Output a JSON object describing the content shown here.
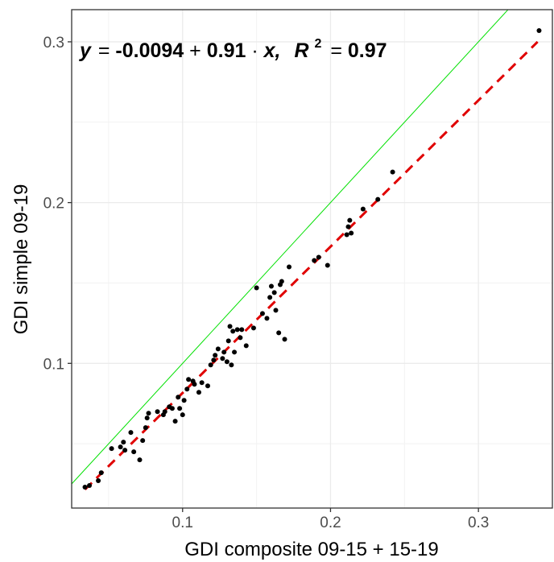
{
  "chart_data": {
    "type": "scatter",
    "xlabel": "GDI composite 09-15 + 15-19",
    "ylabel": "GDI simple 09-19",
    "xlim": [
      0.025,
      0.35
    ],
    "ylim": [
      0.01,
      0.32
    ],
    "x_ticks": [
      0.1,
      0.2,
      0.3
    ],
    "x_tick_labels": [
      "0.1",
      "0.2",
      "0.3"
    ],
    "y_ticks": [
      0.1,
      0.2,
      0.3
    ],
    "y_tick_labels": [
      "0.1",
      "0.2",
      "0.3"
    ],
    "grid": true,
    "annotation": {
      "y_var": "y",
      "equals": "=",
      "intercept": "-0.0094",
      "plus": "+",
      "slope": "0.91",
      "dot": "·",
      "x_var": "x,",
      "r_label": "R",
      "r_exp": "2",
      "r_equals": "=",
      "r_value": "0.97"
    },
    "identity_line": {
      "slope": 1,
      "intercept": 0,
      "color": "#00e000"
    },
    "fit_line": {
      "slope": 0.91,
      "intercept": -0.0094,
      "color": "#e00000",
      "x_range": [
        0.034,
        0.34
      ]
    },
    "points": [
      [
        0.034,
        0.023
      ],
      [
        0.037,
        0.024
      ],
      [
        0.043,
        0.027
      ],
      [
        0.045,
        0.032
      ],
      [
        0.052,
        0.047
      ],
      [
        0.058,
        0.048
      ],
      [
        0.06,
        0.051
      ],
      [
        0.061,
        0.046
      ],
      [
        0.065,
        0.057
      ],
      [
        0.067,
        0.045
      ],
      [
        0.071,
        0.04
      ],
      [
        0.073,
        0.052
      ],
      [
        0.075,
        0.06
      ],
      [
        0.076,
        0.066
      ],
      [
        0.077,
        0.069
      ],
      [
        0.083,
        0.07
      ],
      [
        0.087,
        0.068
      ],
      [
        0.088,
        0.07
      ],
      [
        0.091,
        0.073
      ],
      [
        0.093,
        0.072
      ],
      [
        0.095,
        0.064
      ],
      [
        0.097,
        0.079
      ],
      [
        0.098,
        0.072
      ],
      [
        0.1,
        0.068
      ],
      [
        0.101,
        0.077
      ],
      [
        0.103,
        0.084
      ],
      [
        0.104,
        0.09
      ],
      [
        0.107,
        0.089
      ],
      [
        0.108,
        0.087
      ],
      [
        0.111,
        0.082
      ],
      [
        0.113,
        0.088
      ],
      [
        0.117,
        0.086
      ],
      [
        0.119,
        0.099
      ],
      [
        0.121,
        0.102
      ],
      [
        0.122,
        0.105
      ],
      [
        0.124,
        0.109
      ],
      [
        0.127,
        0.103
      ],
      [
        0.128,
        0.107
      ],
      [
        0.13,
        0.101
      ],
      [
        0.131,
        0.114
      ],
      [
        0.132,
        0.123
      ],
      [
        0.133,
        0.099
      ],
      [
        0.134,
        0.12
      ],
      [
        0.135,
        0.107
      ],
      [
        0.137,
        0.121
      ],
      [
        0.139,
        0.116
      ],
      [
        0.14,
        0.121
      ],
      [
        0.143,
        0.111
      ],
      [
        0.148,
        0.122
      ],
      [
        0.15,
        0.147
      ],
      [
        0.154,
        0.131
      ],
      [
        0.157,
        0.128
      ],
      [
        0.159,
        0.141
      ],
      [
        0.16,
        0.148
      ],
      [
        0.162,
        0.144
      ],
      [
        0.163,
        0.133
      ],
      [
        0.165,
        0.119
      ],
      [
        0.166,
        0.149
      ],
      [
        0.167,
        0.151
      ],
      [
        0.169,
        0.115
      ],
      [
        0.172,
        0.16
      ],
      [
        0.189,
        0.164
      ],
      [
        0.192,
        0.166
      ],
      [
        0.198,
        0.161
      ],
      [
        0.211,
        0.18
      ],
      [
        0.212,
        0.185
      ],
      [
        0.213,
        0.189
      ],
      [
        0.214,
        0.181
      ],
      [
        0.222,
        0.196
      ],
      [
        0.232,
        0.202
      ],
      [
        0.242,
        0.219
      ],
      [
        0.341,
        0.307
      ]
    ]
  }
}
